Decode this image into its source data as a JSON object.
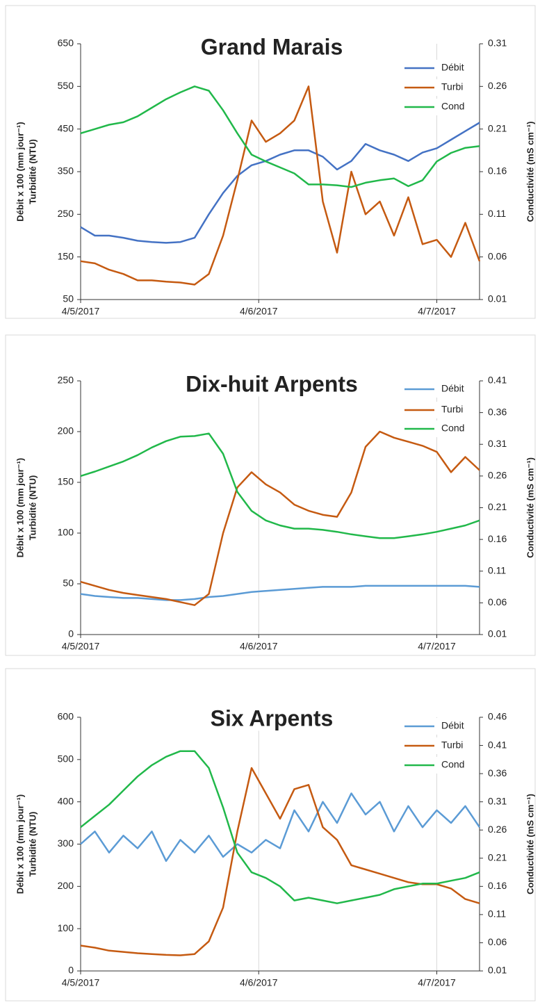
{
  "chart_data": [
    {
      "type": "line",
      "title": "Grand Marais",
      "ylabel": [
        "Débit x 100 (mm jour⁻¹)",
        "Turbidité (NTU)"
      ],
      "y2label": "Conductivité (mS cm⁻¹)",
      "x": [
        0,
        0.08,
        0.16,
        0.24,
        0.32,
        0.4,
        0.48,
        0.56,
        0.64,
        0.72,
        0.8,
        0.88,
        0.96,
        1.04,
        1.12,
        1.2,
        1.28,
        1.36,
        1.44,
        1.52,
        1.6,
        1.68,
        1.76,
        1.84,
        1.92,
        2.0,
        2.08,
        2.16,
        2.24
      ],
      "xlim": [
        0,
        2.24
      ],
      "xticks": [
        {
          "value": 0,
          "label": "4/5/2017"
        },
        {
          "value": 1,
          "label": "4/6/2017"
        },
        {
          "value": 2,
          "label": "4/7/2017"
        }
      ],
      "xgrid": true,
      "ylim": [
        50,
        650
      ],
      "yticks": [
        50,
        150,
        250,
        350,
        450,
        550,
        650
      ],
      "y2lim": [
        0.01,
        0.31
      ],
      "y2ticks": [
        0.01,
        0.06,
        0.11,
        0.16,
        0.21,
        0.26,
        0.31
      ],
      "legend": "upper right",
      "series": [
        {
          "name": "Débit",
          "color": "#4472c4",
          "values": [
            220,
            200,
            200,
            195,
            188,
            185,
            183,
            185,
            195,
            250,
            300,
            340,
            365,
            375,
            390,
            400,
            400,
            385,
            355,
            375,
            415,
            400,
            390,
            375,
            395,
            405,
            425,
            445,
            465
          ]
        },
        {
          "name": "Turbi",
          "color": "#c55a11",
          "values": [
            140,
            135,
            120,
            110,
            95,
            95,
            92,
            90,
            85,
            110,
            200,
            330,
            470,
            420,
            440,
            470,
            550,
            280,
            160,
            350,
            250,
            280,
            200,
            290,
            180,
            190,
            150,
            230,
            140
          ]
        },
        {
          "name": "Cond",
          "color": "#21b84a",
          "axis": "y2",
          "values": [
            0.205,
            0.21,
            0.215,
            0.218,
            0.225,
            0.235,
            0.245,
            0.253,
            0.26,
            0.255,
            0.232,
            0.205,
            0.18,
            0.172,
            0.165,
            0.158,
            0.145,
            0.145,
            0.144,
            0.142,
            0.147,
            0.15,
            0.152,
            0.143,
            0.15,
            0.172,
            0.182,
            0.188,
            0.19
          ]
        }
      ]
    },
    {
      "type": "line",
      "title": "Dix-huit Arpents",
      "ylabel": [
        "Débit x 100 (mm jour⁻¹)",
        "Turbidité (NTU)"
      ],
      "y2label": "Conductivité (mS cm⁻¹)",
      "x": [
        0,
        0.08,
        0.16,
        0.24,
        0.32,
        0.4,
        0.48,
        0.56,
        0.64,
        0.72,
        0.8,
        0.88,
        0.96,
        1.04,
        1.12,
        1.2,
        1.28,
        1.36,
        1.44,
        1.52,
        1.6,
        1.68,
        1.76,
        1.84,
        1.92,
        2.0,
        2.08,
        2.16,
        2.24
      ],
      "xlim": [
        0,
        2.24
      ],
      "xticks": [
        {
          "value": 0,
          "label": "4/5/2017"
        },
        {
          "value": 1,
          "label": "4/6/2017"
        },
        {
          "value": 2,
          "label": "4/7/2017"
        }
      ],
      "xgrid": true,
      "ylim": [
        0,
        250
      ],
      "yticks": [
        0,
        50,
        100,
        150,
        200,
        250
      ],
      "y2lim": [
        0.01,
        0.41
      ],
      "y2ticks": [
        0.01,
        0.06,
        0.11,
        0.16,
        0.21,
        0.26,
        0.31,
        0.36,
        0.41
      ],
      "legend": "upper right",
      "series": [
        {
          "name": "Débit",
          "color": "#5b9bd5",
          "values": [
            40,
            38,
            37,
            36,
            36,
            35,
            34,
            34,
            35,
            37,
            38,
            40,
            42,
            43,
            44,
            45,
            46,
            47,
            47,
            47,
            48,
            48,
            48,
            48,
            48,
            48,
            48,
            48,
            47
          ]
        },
        {
          "name": "Turbi",
          "color": "#c55a11",
          "values": [
            52,
            48,
            44,
            41,
            39,
            37,
            35,
            32,
            29,
            40,
            100,
            145,
            160,
            148,
            140,
            128,
            122,
            118,
            116,
            140,
            185,
            200,
            194,
            190,
            186,
            180,
            160,
            175,
            162
          ]
        },
        {
          "name": "Cond",
          "color": "#21b84a",
          "axis": "y2",
          "values": [
            0.26,
            0.267,
            0.275,
            0.283,
            0.293,
            0.305,
            0.315,
            0.322,
            0.323,
            0.327,
            0.295,
            0.235,
            0.205,
            0.19,
            0.182,
            0.177,
            0.177,
            0.175,
            0.172,
            0.168,
            0.165,
            0.162,
            0.162,
            0.165,
            0.168,
            0.172,
            0.177,
            0.182,
            0.19
          ]
        }
      ]
    },
    {
      "type": "line",
      "title": "Six Arpents",
      "ylabel": [
        "Débit x 100 (mm jour⁻¹)",
        "Turbidité (NTU)"
      ],
      "y2label": "Conductivité (mS cm⁻¹)",
      "x": [
        0,
        0.08,
        0.16,
        0.24,
        0.32,
        0.4,
        0.48,
        0.56,
        0.64,
        0.72,
        0.8,
        0.88,
        0.96,
        1.04,
        1.12,
        1.2,
        1.28,
        1.36,
        1.44,
        1.52,
        1.6,
        1.68,
        1.76,
        1.84,
        1.92,
        2.0,
        2.08,
        2.16,
        2.24
      ],
      "xlim": [
        0,
        2.24
      ],
      "xticks": [
        {
          "value": 0,
          "label": "4/5/2017"
        },
        {
          "value": 1,
          "label": "4/6/2017"
        },
        {
          "value": 2,
          "label": "4/7/2017"
        }
      ],
      "xgrid": true,
      "ylim": [
        0,
        600
      ],
      "yticks": [
        0,
        100,
        200,
        300,
        400,
        500,
        600
      ],
      "y2lim": [
        0.01,
        0.46
      ],
      "y2ticks": [
        0.01,
        0.06,
        0.11,
        0.16,
        0.21,
        0.26,
        0.31,
        0.36,
        0.41,
        0.46
      ],
      "legend": "upper right",
      "series": [
        {
          "name": "Débit",
          "color": "#5b9bd5",
          "values": [
            300,
            330,
            280,
            320,
            290,
            330,
            260,
            310,
            280,
            320,
            270,
            300,
            280,
            310,
            290,
            380,
            330,
            400,
            350,
            420,
            370,
            400,
            330,
            390,
            340,
            380,
            350,
            390,
            340
          ]
        },
        {
          "name": "Turbi",
          "color": "#c55a11",
          "values": [
            60,
            55,
            48,
            45,
            42,
            40,
            38,
            37,
            40,
            70,
            150,
            330,
            480,
            420,
            360,
            430,
            440,
            340,
            310,
            250,
            240,
            230,
            220,
            210,
            205,
            205,
            195,
            170,
            160
          ]
        },
        {
          "name": "Cond",
          "color": "#21b84a",
          "axis": "y2",
          "values": [
            0.265,
            0.285,
            0.305,
            0.33,
            0.355,
            0.375,
            0.39,
            0.4,
            0.4,
            0.37,
            0.3,
            0.22,
            0.185,
            0.175,
            0.16,
            0.135,
            0.14,
            0.135,
            0.13,
            0.135,
            0.14,
            0.145,
            0.155,
            0.16,
            0.165,
            0.165,
            0.17,
            0.175,
            0.185
          ]
        }
      ]
    }
  ]
}
